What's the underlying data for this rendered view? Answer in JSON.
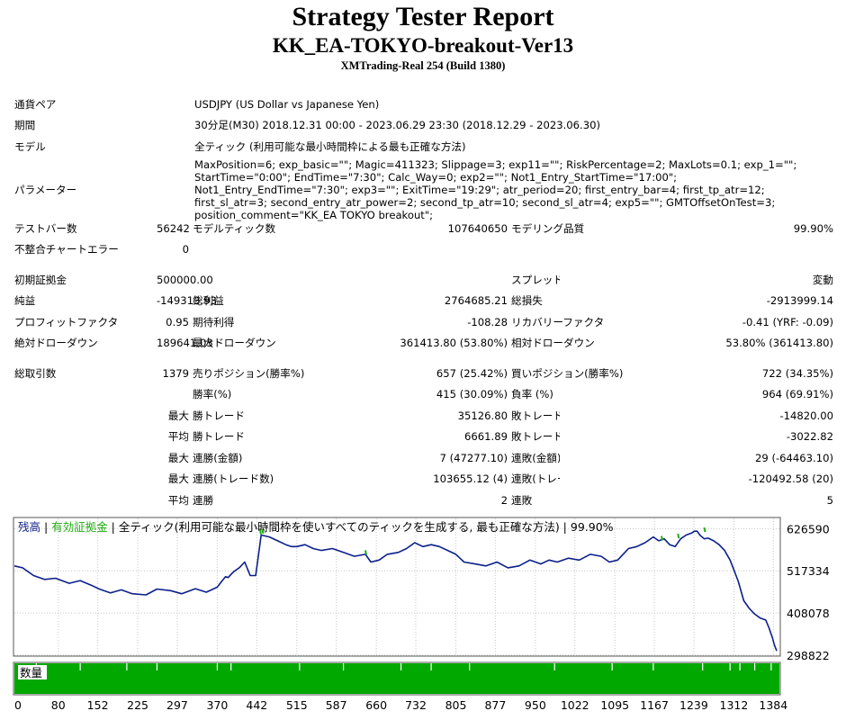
{
  "header": {
    "title": "Strategy Tester Report",
    "ea_name": "KK_EA-TOKYO-breakout-Ver13",
    "server": "XMTrading-Real 254 (Build 1380)"
  },
  "info": {
    "symbol_label": "通貨ペア",
    "symbol_value": "USDJPY (US Dollar vs Japanese Yen)",
    "period_label": "期間",
    "period_value": "30分足(M30) 2018.12.31 00:00 - 2023.06.29 23:30 (2018.12.29 - 2023.06.30)",
    "model_label": "モデル",
    "model_value": "全ティック (利用可能な最小時間枠による最も正確な方法)",
    "params_label": "パラメーター",
    "params_value": "MaxPosition=6; exp_basic=\"\"; Magic=411323; Slippage=3; exp11=\"\"; RiskPercentage=2; MaxLots=0.1; exp_1=\"\"; StartTime=\"0:00\"; EndTime=\"7:30\"; Calc_Way=0; exp2=\"\"; Not1_Entry_StartTime=\"17:00\"; Not1_Entry_EndTime=\"7:30\"; exp3=\"\"; ExitTime=\"19:29\"; atr_period=20; first_entry_bar=4; first_tp_atr=12; first_sl_atr=3; second_entry_atr_power=2; second_tp_atr=10; second_sl_atr=4; exp5=\"\"; GMTOffsetOnTest=3; position_comment=\"KK_EA TOKYO breakout\";"
  },
  "stats": {
    "bars_label": "テストバー数",
    "bars_value": "56242",
    "ticks_label": "モデルティック数",
    "ticks_value": "107640650",
    "quality_label": "モデリング品質",
    "quality_value": "99.90%",
    "mismatch_label": "不整合チャートエラー",
    "mismatch_value": "0",
    "deposit_label": "初期証拠金",
    "deposit_value": "500000.00",
    "spread_label": "スプレッド",
    "spread_value": "変動",
    "net_label": "純益",
    "net_value": "-149313.93",
    "gross_profit_label": "総利益",
    "gross_profit_value": "2764685.21",
    "gross_loss_label": "総損失",
    "gross_loss_value": "-2913999.14",
    "pf_label": "プロフィットファクタ",
    "pf_value": "0.95",
    "expected_label": "期待利得",
    "expected_value": "-108.28",
    "recovery_label": "リカバリーファクタ",
    "recovery_value": "-0.41 (YRF: -0.09)",
    "abs_dd_label": "絶対ドローダウン",
    "abs_dd_value": "189641.03",
    "max_dd_label": "最大ドローダウン",
    "max_dd_value": "361413.80 (53.80%)",
    "rel_dd_label": "相対ドローダウン",
    "rel_dd_value": "53.80% (361413.80)",
    "trades_label": "総取引数",
    "trades_value": "1379",
    "short_label": "売りポジション(勝率%)",
    "short_value": "657 (25.42%)",
    "long_label": "買いポジション(勝率%)",
    "long_value": "722 (34.35%)",
    "win_rate_label": "勝率(%)",
    "win_rate_value": "415 (30.09%)",
    "loss_rate_label": "負率 (%)",
    "loss_rate_value": "964 (69.91%)",
    "max_prefix": "最大",
    "avg_prefix": "平均",
    "max_win_label": "勝トレード",
    "max_win_value": "35126.80",
    "max_loss_label": "敗トレード",
    "max_loss_value": "-14820.00",
    "avg_win_label": "勝トレード",
    "avg_win_value": "6661.89",
    "avg_loss_label": "敗トレード",
    "avg_loss_value": "-3022.82",
    "max_consec_win_money_label": "連勝(金額)",
    "max_consec_win_money_value": "7 (47277.10)",
    "max_consec_loss_money_label": "連敗(金額)",
    "max_consec_loss_money_value": "29 (-64463.10)",
    "max_consec_win_trades_label": "連勝(トレード数)",
    "max_consec_win_trades_value": "103655.12 (4)",
    "max_consec_loss_trades_label": "連敗(トレード数)",
    "max_consec_loss_trades_value": "-120492.58 (20)",
    "avg_consec_win_label": "連勝",
    "avg_consec_win_value": "2",
    "avg_consec_loss_label": "連敗",
    "avg_consec_loss_value": "5"
  },
  "chart_data": {
    "type": "line",
    "legend": {
      "balance": "残高",
      "sep1": " | ",
      "equity": "有効証拠金",
      "sep2": " | ",
      "model": "全ティック(利用可能な最小時間枠を使いすべてのティックを生成する, 最も正確な方法)",
      "sep3": " | ",
      "quality": "99.90%"
    },
    "colors": {
      "balance": "#0c1f8a",
      "equity": "#1faa12",
      "volume": "#00a800",
      "grid": "#c8c8c8"
    },
    "y_ticks": [
      626590,
      517334,
      408078,
      298822
    ],
    "ylim": [
      298822,
      653000
    ],
    "x_ticks": [
      0,
      80,
      152,
      225,
      297,
      370,
      442,
      515,
      587,
      660,
      732,
      805,
      877,
      950,
      1022,
      1095,
      1167,
      1239,
      1312,
      1384
    ],
    "xlim": [
      0,
      1395
    ],
    "volume_label": "数量",
    "grid": true,
    "series": [
      {
        "key": "balance",
        "x": [
          0,
          15,
          35,
          55,
          75,
          100,
          120,
          140,
          155,
          175,
          195,
          215,
          240,
          260,
          285,
          305,
          330,
          350,
          370,
          378,
          385,
          390,
          395,
          400,
          410,
          420,
          430,
          440,
          450,
          465,
          480,
          495,
          505,
          515,
          530,
          545,
          560,
          580,
          600,
          620,
          640,
          650,
          665,
          680,
          700,
          715,
          730,
          745,
          760,
          775,
          790,
          805,
          820,
          840,
          860,
          880,
          900,
          920,
          940,
          960,
          975,
          990,
          1010,
          1030,
          1050,
          1070,
          1085,
          1100,
          1110,
          1120,
          1135,
          1150,
          1165,
          1175,
          1185,
          1195,
          1205,
          1215,
          1225,
          1235,
          1240,
          1245,
          1250,
          1258,
          1265,
          1275,
          1285,
          1295,
          1305,
          1312,
          1320,
          1330,
          1340,
          1350,
          1360,
          1370,
          1376,
          1382,
          1386,
          1390
        ],
        "values": [
          530000,
          525000,
          505000,
          495000,
          498000,
          485000,
          492000,
          480000,
          470000,
          460000,
          468000,
          458000,
          455000,
          470000,
          466000,
          458000,
          471000,
          462000,
          475000,
          490000,
          502000,
          500000,
          508000,
          515000,
          525000,
          540000,
          505000,
          505000,
          610000,
          605000,
          595000,
          585000,
          580000,
          580000,
          585000,
          575000,
          570000,
          575000,
          565000,
          555000,
          560000,
          540000,
          545000,
          560000,
          565000,
          575000,
          590000,
          580000,
          585000,
          580000,
          570000,
          560000,
          540000,
          535000,
          530000,
          540000,
          525000,
          530000,
          545000,
          535000,
          545000,
          540000,
          550000,
          545000,
          560000,
          555000,
          540000,
          545000,
          560000,
          575000,
          580000,
          590000,
          605000,
          595000,
          600000,
          585000,
          580000,
          600000,
          610000,
          615000,
          620000,
          620000,
          610000,
          600000,
          602000,
          595000,
          585000,
          570000,
          545000,
          520000,
          490000,
          440000,
          420000,
          405000,
          395000,
          390000,
          370000,
          345000,
          325000,
          310000
        ]
      },
      {
        "key": "equity",
        "x": [
          448,
          452,
          640,
          1180,
          1210,
          1258
        ],
        "values": [
          614000,
          616000,
          561000,
          598000,
          604000,
          620000
        ]
      }
    ],
    "volume_gaps_x": [
      40,
      120,
      205,
      260,
      370,
      395,
      520,
      600,
      705,
      760,
      830,
      985,
      1090,
      1165,
      1255,
      1305,
      1323,
      1350,
      1380
    ]
  }
}
